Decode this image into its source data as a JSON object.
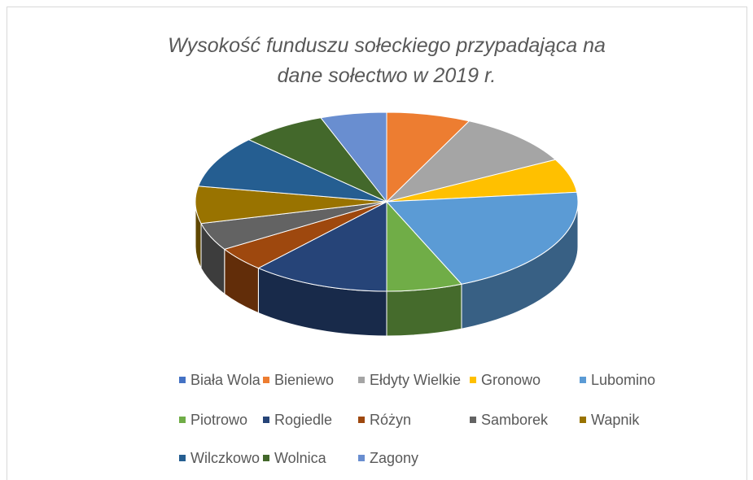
{
  "chart_data": {
    "type": "pie3d",
    "title": "Wysokość funduszu sołeckiego przypadająca na dane sołectwo w 2019 r.",
    "categories": [
      "Biała Wola",
      "Bieniewo",
      "Ełdyty Wielkie",
      "Gronowo",
      "Lubomino",
      "Piotrowo",
      "Rogiedle",
      "Różyn",
      "Samborek",
      "Wapnik",
      "Wilczkowo",
      "Wolnica",
      "Zagony"
    ],
    "values": [
      0,
      7.1,
      10.1,
      6.1,
      20.3,
      6.4,
      11.7,
      4.4,
      5.0,
      6.7,
      9.4,
      7.2,
      5.6
    ],
    "colors": [
      "#4472c4",
      "#ed7d31",
      "#a5a5a5",
      "#ffc000",
      "#5b9bd5",
      "#70ad47",
      "#264478",
      "#9e480e",
      "#636363",
      "#997300",
      "#255e91",
      "#43682b",
      "#698ed0"
    ],
    "legend": "bottom"
  }
}
